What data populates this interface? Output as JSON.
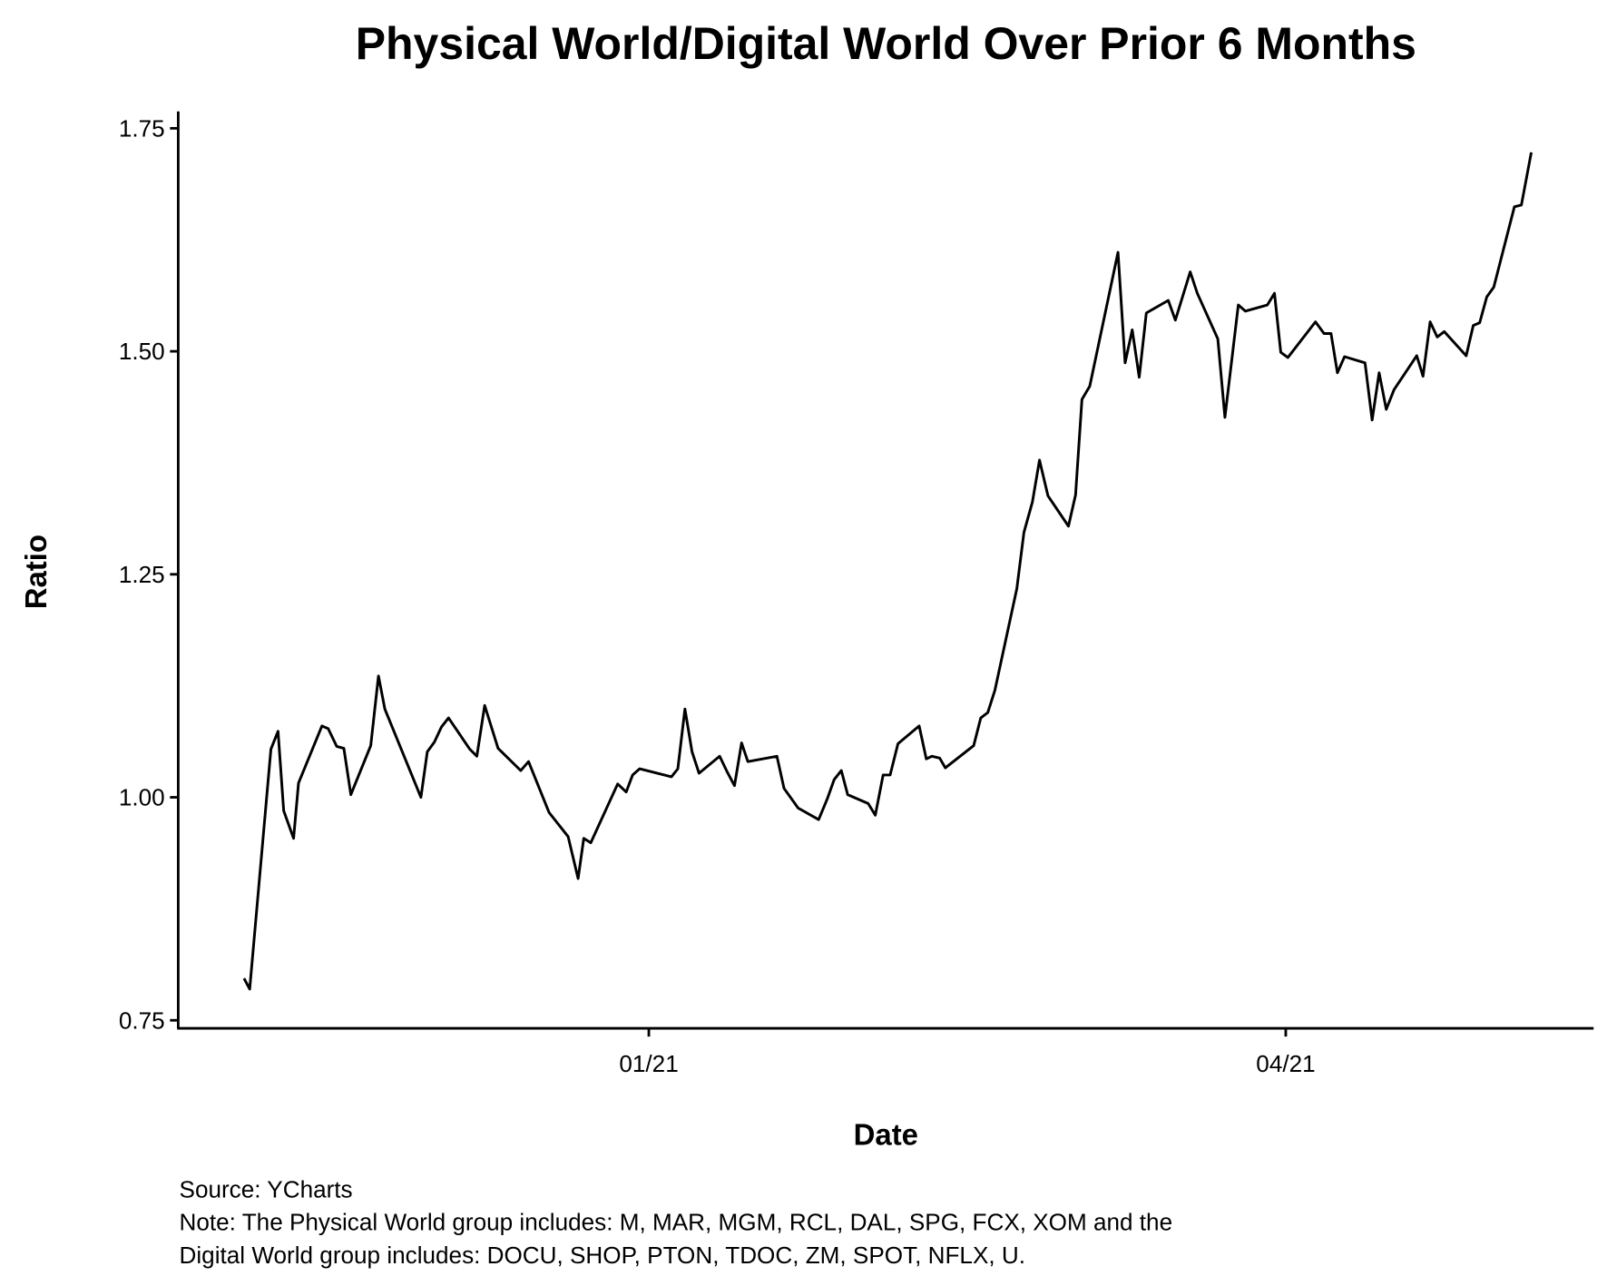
{
  "chart_data": {
    "type": "line",
    "title": "Physical World/Digital World Over Prior 6 Months",
    "xlabel": "Date",
    "ylabel": "Ratio",
    "x_units": "days since 2021-01-01",
    "xlim": [
      -66.5,
      133.5
    ],
    "ylim": [
      0.741,
      1.769
    ],
    "grid": false,
    "x_ticks": [
      {
        "value": 0,
        "label": "01/21"
      },
      {
        "value": 90,
        "label": "04/21"
      }
    ],
    "y_ticks": [
      {
        "value": 0.75,
        "label": "0.75"
      },
      {
        "value": 1.0,
        "label": "1.00"
      },
      {
        "value": 1.25,
        "label": "1.25"
      },
      {
        "value": 1.5,
        "label": "1.50"
      },
      {
        "value": 1.75,
        "label": "1.75"
      }
    ],
    "series": [
      {
        "name": "Physical World/Digital World",
        "color": "#000000",
        "points": [
          [
            -57.2,
            0.797
          ],
          [
            -56.4,
            0.785
          ],
          [
            -53.4,
            1.054
          ],
          [
            -52.4,
            1.074
          ],
          [
            -51.6,
            0.985
          ],
          [
            -50.2,
            0.954
          ],
          [
            -49.5,
            1.016
          ],
          [
            -46.2,
            1.08
          ],
          [
            -45.3,
            1.077
          ],
          [
            -44.1,
            1.057
          ],
          [
            -43.1,
            1.055
          ],
          [
            -42.1,
            1.003
          ],
          [
            -39.3,
            1.058
          ],
          [
            -38.2,
            1.136
          ],
          [
            -37.3,
            1.099
          ],
          [
            -32.2,
            1.0
          ],
          [
            -31.3,
            1.051
          ],
          [
            -30.3,
            1.062
          ],
          [
            -29.3,
            1.079
          ],
          [
            -28.3,
            1.089
          ],
          [
            -25.3,
            1.054
          ],
          [
            -24.3,
            1.046
          ],
          [
            -23.2,
            1.103
          ],
          [
            -21.3,
            1.055
          ],
          [
            -18.1,
            1.03
          ],
          [
            -17.0,
            1.04
          ],
          [
            -14.1,
            0.983
          ],
          [
            -11.4,
            0.956
          ],
          [
            -10.0,
            0.909
          ],
          [
            -9.2,
            0.954
          ],
          [
            -8.2,
            0.949
          ],
          [
            -4.4,
            1.015
          ],
          [
            -3.2,
            1.006
          ],
          [
            -2.3,
            1.025
          ],
          [
            -1.3,
            1.032
          ],
          [
            3.2,
            1.023
          ],
          [
            4.1,
            1.032
          ],
          [
            5.1,
            1.099
          ],
          [
            6.1,
            1.051
          ],
          [
            7.1,
            1.027
          ],
          [
            10.0,
            1.046
          ],
          [
            11.1,
            1.028
          ],
          [
            12.1,
            1.013
          ],
          [
            13.1,
            1.061
          ],
          [
            14.0,
            1.04
          ],
          [
            18.1,
            1.046
          ],
          [
            19.1,
            1.01
          ],
          [
            21.1,
            0.988
          ],
          [
            24.0,
            0.975
          ],
          [
            25.2,
            0.998
          ],
          [
            26.2,
            1.02
          ],
          [
            27.2,
            1.03
          ],
          [
            28.1,
            1.003
          ],
          [
            31.0,
            0.993
          ],
          [
            32.0,
            0.98
          ],
          [
            33.1,
            1.025
          ],
          [
            34.1,
            1.025
          ],
          [
            35.2,
            1.06
          ],
          [
            38.2,
            1.08
          ],
          [
            39.2,
            1.043
          ],
          [
            40.0,
            1.046
          ],
          [
            41.1,
            1.044
          ],
          [
            41.9,
            1.033
          ],
          [
            45.9,
            1.058
          ],
          [
            46.9,
            1.089
          ],
          [
            47.9,
            1.095
          ],
          [
            48.9,
            1.12
          ],
          [
            52.0,
            1.234
          ],
          [
            53.0,
            1.297
          ],
          [
            54.2,
            1.331
          ],
          [
            55.2,
            1.378
          ],
          [
            56.4,
            1.338
          ],
          [
            59.3,
            1.304
          ],
          [
            60.3,
            1.339
          ],
          [
            61.2,
            1.446
          ],
          [
            62.3,
            1.461
          ],
          [
            66.3,
            1.611
          ],
          [
            67.3,
            1.487
          ],
          [
            68.3,
            1.524
          ],
          [
            69.3,
            1.471
          ],
          [
            70.3,
            1.543
          ],
          [
            73.4,
            1.557
          ],
          [
            74.4,
            1.535
          ],
          [
            76.5,
            1.589
          ],
          [
            77.5,
            1.565
          ],
          [
            80.4,
            1.514
          ],
          [
            81.4,
            1.426
          ],
          [
            83.3,
            1.552
          ],
          [
            84.3,
            1.545
          ],
          [
            87.4,
            1.552
          ],
          [
            88.4,
            1.565
          ],
          [
            89.3,
            1.499
          ],
          [
            90.3,
            1.493
          ],
          [
            94.2,
            1.533
          ],
          [
            95.4,
            1.52
          ],
          [
            96.4,
            1.52
          ],
          [
            97.3,
            1.476
          ],
          [
            98.3,
            1.494
          ],
          [
            101.2,
            1.487
          ],
          [
            102.2,
            1.423
          ],
          [
            103.2,
            1.476
          ],
          [
            104.2,
            1.435
          ],
          [
            105.3,
            1.457
          ],
          [
            108.5,
            1.495
          ],
          [
            109.4,
            1.472
          ],
          [
            110.4,
            1.533
          ],
          [
            111.4,
            1.516
          ],
          [
            112.4,
            1.522
          ],
          [
            115.5,
            1.495
          ],
          [
            116.5,
            1.529
          ],
          [
            117.4,
            1.532
          ],
          [
            118.4,
            1.561
          ],
          [
            119.4,
            1.572
          ],
          [
            122.3,
            1.662
          ],
          [
            123.3,
            1.664
          ],
          [
            124.7,
            1.723
          ]
        ]
      }
    ],
    "captions": [
      "Source: YCharts",
      "Note: The Physical World group includes: M, MAR, MGM, RCL, DAL, SPG, FCX, XOM and the",
      "Digital World group includes: DOCU, SHOP, PTON, TDOC, ZM, SPOT, NFLX, U."
    ]
  }
}
